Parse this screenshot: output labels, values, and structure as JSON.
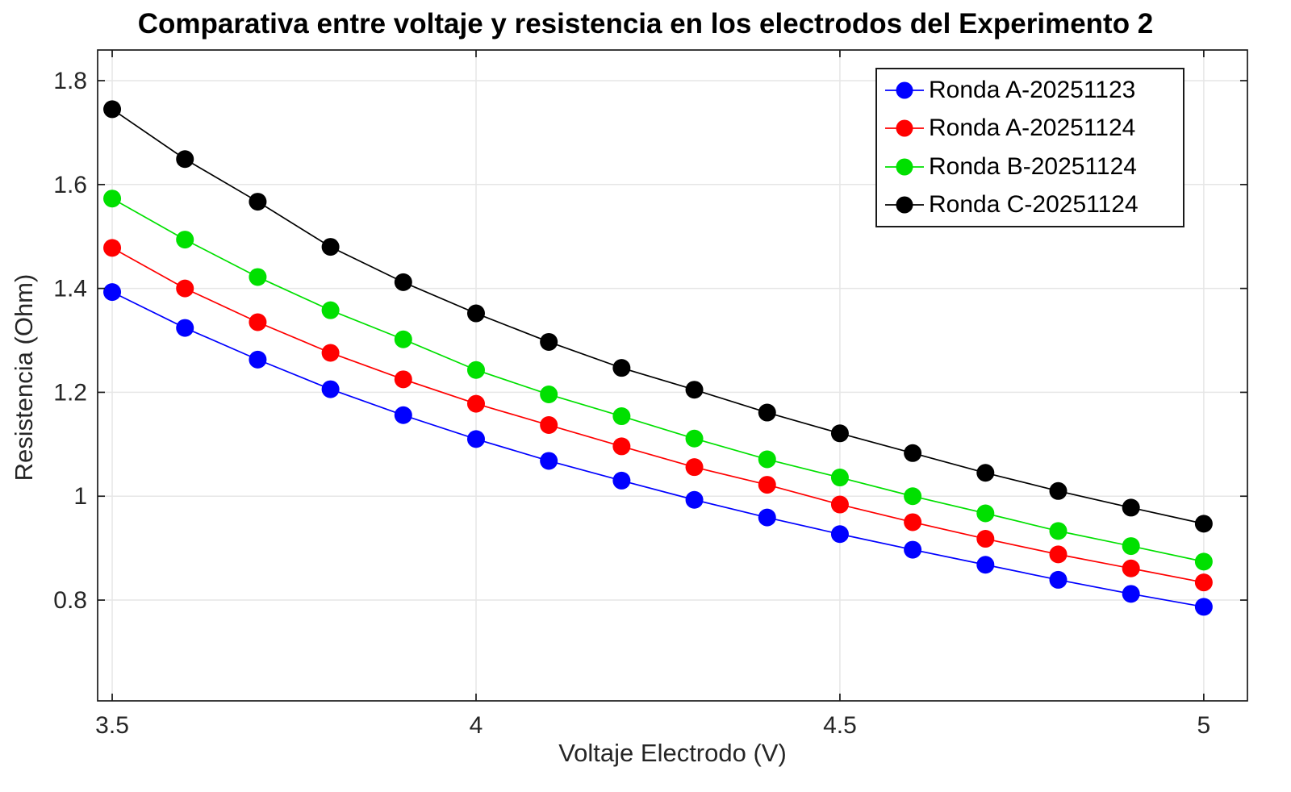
{
  "colors": {
    "background": "#ffffff",
    "grid": "#e6e6e6",
    "axis": "#1a1a1a",
    "tick_label": "#262626",
    "title": "#000000"
  },
  "chart_data": {
    "type": "line",
    "title": "Comparativa entre voltaje y resistencia en los electrodos del Experimento 2",
    "xlabel": "Voltaje Electrodo (V)",
    "ylabel": "Resistencia (Ohm)",
    "xlim": [
      3.48,
      5.06
    ],
    "ylim": [
      0.606,
      1.859
    ],
    "xticks": [
      3.5,
      4,
      4.5,
      5
    ],
    "xtick_labels": [
      "3.5",
      "4",
      "4.5",
      "5"
    ],
    "yticks": [
      0.8,
      1,
      1.2,
      1.4,
      1.6,
      1.8
    ],
    "ytick_labels": [
      "0.8",
      "1",
      "1.2",
      "1.4",
      "1.6",
      "1.8"
    ],
    "grid": true,
    "legend_position": "top-right",
    "marker": "circle",
    "x": [
      3.5,
      3.6,
      3.7,
      3.8,
      3.9,
      4.0,
      4.1,
      4.2,
      4.3,
      4.4,
      4.5,
      4.6,
      4.7,
      4.8,
      4.9,
      5.0
    ],
    "series": [
      {
        "name": "Ronda A-20251123",
        "color": "#0000ff",
        "values": [
          1.393,
          1.324,
          1.263,
          1.206,
          1.156,
          1.11,
          1.068,
          1.03,
          0.993,
          0.959,
          0.927,
          0.897,
          0.868,
          0.839,
          0.812,
          0.787
        ]
      },
      {
        "name": "Ronda A-20251124",
        "color": "#ff0000",
        "values": [
          1.478,
          1.4,
          1.335,
          1.276,
          1.225,
          1.178,
          1.137,
          1.096,
          1.056,
          1.022,
          0.984,
          0.95,
          0.918,
          0.888,
          0.861,
          0.834
        ]
      },
      {
        "name": "Ronda B-20251124",
        "color": "#00e000",
        "values": [
          1.573,
          1.494,
          1.422,
          1.358,
          1.302,
          1.243,
          1.196,
          1.154,
          1.111,
          1.071,
          1.036,
          1.0,
          0.967,
          0.933,
          0.904,
          0.874
        ]
      },
      {
        "name": "Ronda C-20251124",
        "color": "#000000",
        "values": [
          1.745,
          1.649,
          1.567,
          1.48,
          1.412,
          1.352,
          1.297,
          1.247,
          1.205,
          1.161,
          1.121,
          1.083,
          1.045,
          1.01,
          0.978,
          0.947
        ]
      }
    ]
  }
}
